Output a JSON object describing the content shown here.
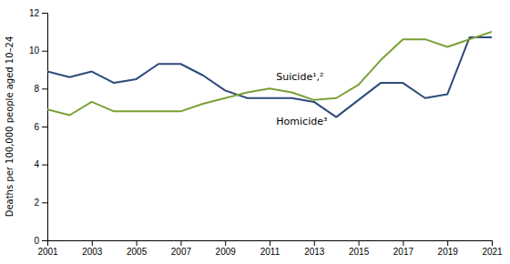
{
  "chart_data": {
    "type": "line",
    "x": [
      2001,
      2002,
      2003,
      2004,
      2005,
      2006,
      2007,
      2008,
      2009,
      2010,
      2011,
      2012,
      2013,
      2014,
      2015,
      2016,
      2017,
      2018,
      2019,
      2020,
      2021
    ],
    "series": [
      {
        "color": "#2E4A7A",
        "values": [
          8.9,
          8.6,
          8.9,
          8.3,
          8.5,
          9.3,
          9.3,
          8.7,
          7.9,
          7.5,
          7.5,
          7.5,
          7.3,
          6.5,
          7.4,
          8.3,
          8.3,
          7.5,
          7.7,
          10.7,
          10.7
        ]
      },
      {
        "color": "#7BA036",
        "values": [
          6.9,
          6.6,
          7.3,
          6.8,
          6.8,
          6.8,
          6.8,
          7.2,
          7.5,
          7.8,
          8.0,
          7.8,
          7.4,
          7.5,
          8.2,
          9.5,
          10.6,
          10.6,
          10.2,
          10.6,
          11.0
        ]
      }
    ],
    "annotations": [
      {
        "text": "Suicide¹,²",
        "x": 2011.3,
        "y": 8.3
      },
      {
        "text": "Homicide³",
        "x": 2011.3,
        "y": 6.55
      }
    ],
    "ylabel": "Deaths per 100,000 people aged 10–24",
    "xlim": [
      2001,
      2021
    ],
    "xticks": [
      2001,
      2003,
      2005,
      2007,
      2009,
      2011,
      2013,
      2015,
      2017,
      2019,
      2021
    ],
    "ylim": [
      0,
      12
    ],
    "yticks": [
      0,
      2,
      4,
      6,
      8,
      10,
      12
    ],
    "grid": false
  }
}
